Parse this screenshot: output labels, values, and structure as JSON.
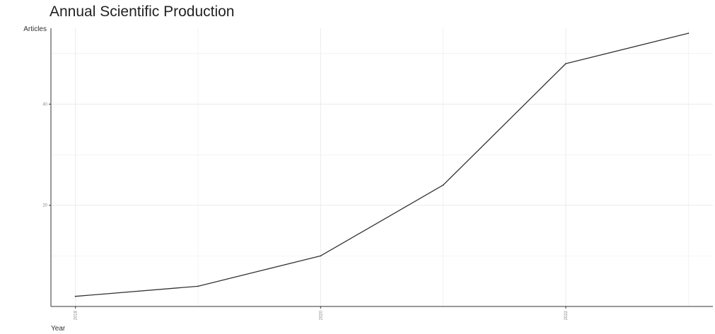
{
  "chart_data": {
    "type": "line",
    "title": "Annual Scientific Production",
    "xlabel": "Year",
    "ylabel": "Articles",
    "x": [
      2018,
      2019,
      2020,
      2021,
      2022,
      2023
    ],
    "series": [
      {
        "values": [
          2,
          4,
          10,
          24,
          48,
          54
        ]
      }
    ],
    "xticks": [
      2018,
      2020,
      2022
    ],
    "yticks": [
      20,
      40
    ],
    "ylim": [
      0,
      55
    ],
    "xlim": [
      2017.8,
      2023.2
    ],
    "grid": true,
    "colors": {
      "line": "#333333",
      "grid": "#ebebeb",
      "axis": "#333333"
    }
  }
}
